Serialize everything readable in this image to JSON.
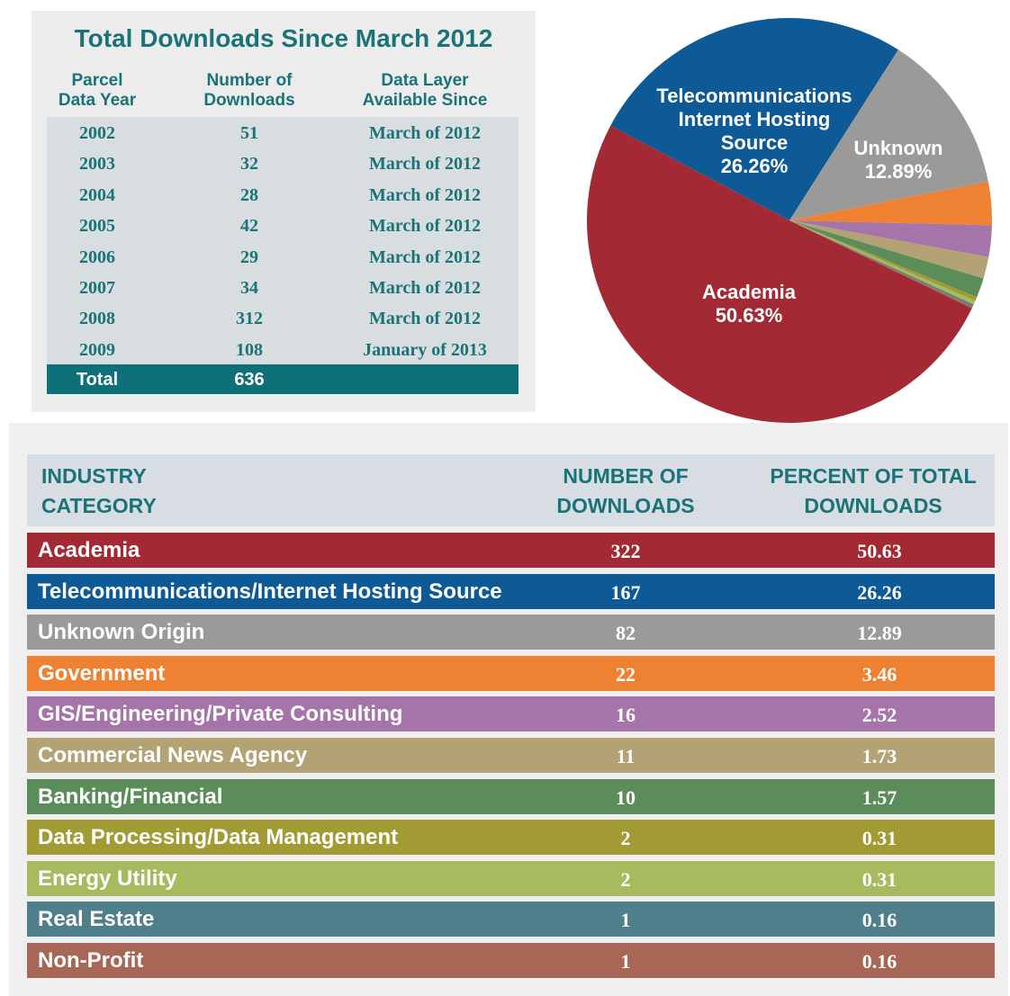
{
  "downloads_table": {
    "title": "Total Downloads Since March 2012",
    "columns": [
      [
        "Parcel",
        "Data Year"
      ],
      [
        "Number of",
        "Downloads"
      ],
      [
        "Data Layer",
        "Available Since"
      ]
    ],
    "rows": [
      [
        "2002",
        "51",
        "March of 2012"
      ],
      [
        "2003",
        "32",
        "March of 2012"
      ],
      [
        "2004",
        "28",
        "March of 2012"
      ],
      [
        "2005",
        "42",
        "March of 2012"
      ],
      [
        "2006",
        "29",
        "March of 2012"
      ],
      [
        "2007",
        "34",
        "March of 2012"
      ],
      [
        "2008",
        "312",
        "March of 2012"
      ],
      [
        "2009",
        "108",
        "January of 2013"
      ]
    ],
    "total": [
      "Total",
      "636"
    ]
  },
  "chart_data": {
    "type": "pie",
    "categories": [
      "Academia",
      "Telecommunications Internet Hosting Source",
      "Unknown",
      null,
      null,
      null,
      null,
      null,
      null,
      null,
      null
    ],
    "values": [
      50.63,
      26.26,
      12.89,
      3.46,
      2.52,
      1.73,
      1.57,
      0.31,
      0.31,
      0.16,
      0.16
    ],
    "value_labels": [
      "50.63%",
      "26.26%",
      "12.89%",
      null,
      null,
      null,
      null,
      null,
      null,
      null,
      null
    ],
    "colors": [
      "#a32a35",
      "#0e5a96",
      "#9a9a99",
      "#ef8232",
      "#a574a8",
      "#b3a274",
      "#5b8d5a",
      "#a29a33",
      "#a6bb5e",
      "#4e7f8a",
      "#a86756"
    ]
  },
  "industry_table": {
    "columns": [
      [
        "INDUSTRY",
        "CATEGORY"
      ],
      [
        "NUMBER OF",
        "DOWNLOADS"
      ],
      [
        "PERCENT OF TOTAL",
        "DOWNLOADS"
      ]
    ],
    "rows": [
      [
        "Academia",
        "322",
        "50.63"
      ],
      [
        "Telecommunications/Internet Hosting Source",
        "167",
        "26.26"
      ],
      [
        "Unknown Origin",
        "82",
        "12.89"
      ],
      [
        "Government",
        "22",
        "3.46"
      ],
      [
        "GIS/Engineering/Private Consulting",
        "16",
        "2.52"
      ],
      [
        "Commercial News Agency",
        "11",
        "1.73"
      ],
      [
        "Banking/Financial",
        "10",
        "1.57"
      ],
      [
        "Data Processing/Data Management",
        "2",
        "0.31"
      ],
      [
        "Energy Utility",
        "2",
        "0.31"
      ],
      [
        "Real Estate",
        "1",
        "0.16"
      ],
      [
        "Non-Profit",
        "1",
        "0.16"
      ]
    ]
  }
}
